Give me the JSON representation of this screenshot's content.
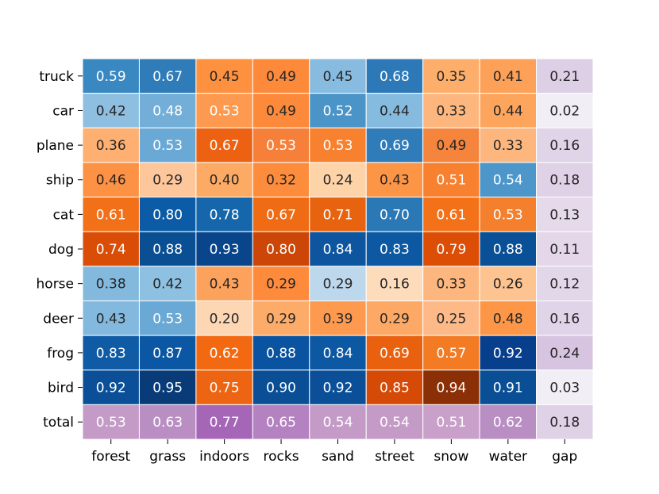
{
  "chart_data": {
    "type": "heatmap",
    "title": "",
    "xlabel": "",
    "ylabel": "",
    "columns": [
      "forest",
      "grass",
      "indoors",
      "rocks",
      "sand",
      "street",
      "snow",
      "water",
      "gap"
    ],
    "rows": [
      "truck",
      "car",
      "plane",
      "ship",
      "cat",
      "dog",
      "horse",
      "deer",
      "frog",
      "bird",
      "total"
    ],
    "values": [
      [
        0.59,
        0.67,
        0.45,
        0.49,
        0.45,
        0.68,
        0.35,
        0.41,
        0.21
      ],
      [
        0.42,
        0.48,
        0.53,
        0.49,
        0.52,
        0.44,
        0.33,
        0.44,
        0.02
      ],
      [
        0.36,
        0.53,
        0.67,
        0.53,
        0.53,
        0.69,
        0.49,
        0.33,
        0.16
      ],
      [
        0.46,
        0.29,
        0.4,
        0.32,
        0.24,
        0.43,
        0.51,
        0.54,
        0.18
      ],
      [
        0.61,
        0.8,
        0.78,
        0.67,
        0.71,
        0.7,
        0.61,
        0.53,
        0.13
      ],
      [
        0.74,
        0.88,
        0.93,
        0.8,
        0.84,
        0.83,
        0.79,
        0.88,
        0.11
      ],
      [
        0.38,
        0.42,
        0.43,
        0.29,
        0.29,
        0.16,
        0.33,
        0.26,
        0.12
      ],
      [
        0.43,
        0.53,
        0.2,
        0.29,
        0.39,
        0.29,
        0.25,
        0.48,
        0.16
      ],
      [
        0.83,
        0.87,
        0.62,
        0.88,
        0.84,
        0.69,
        0.57,
        0.92,
        0.24
      ],
      [
        0.92,
        0.95,
        0.75,
        0.9,
        0.92,
        0.85,
        0.94,
        0.91,
        0.03
      ],
      [
        0.53,
        0.63,
        0.77,
        0.65,
        0.54,
        0.54,
        0.51,
        0.62,
        0.18
      ]
    ],
    "cell_colors": [
      [
        "#3a88c2",
        "#2f7cb9",
        "#fd9140",
        "#fd8a3b",
        "#87bbe0",
        "#2d79b7",
        "#fdae6b",
        "#fda058",
        "#ddd0e6"
      ],
      [
        "#8ebfe0",
        "#72aed7",
        "#fd9a4f",
        "#fd8a3b",
        "#4a94c8",
        "#86bbe0",
        "#fdb77e",
        "#fda55d",
        "#f1eef5"
      ],
      [
        "#fdb072",
        "#6aa9d5",
        "#ec6212",
        "#f6803a",
        "#f7812f",
        "#2f7cb9",
        "#f5843d",
        "#fdb77e",
        "#e0d4e8"
      ],
      [
        "#fd9245",
        "#fdc69b",
        "#fdab64",
        "#fd8d3c",
        "#fed3a8",
        "#fd9546",
        "#f7812f",
        "#4c96ca",
        "#dfd2e7"
      ],
      [
        "#f17018",
        "#0b5ba6",
        "#1566ab",
        "#ef6b14",
        "#e7630f",
        "#2b78b6",
        "#f37219",
        "#f47f2c",
        "#e4daea"
      ],
      [
        "#da4d06",
        "#0a4f93",
        "#08458a",
        "#cc4607",
        "#0e55a0",
        "#0d58a3",
        "#dc4d05",
        "#0a5097",
        "#e3d7e9"
      ],
      [
        "#84b9de",
        "#8ec0e1",
        "#fda25c",
        "#fd8b3b",
        "#bdd7ec",
        "#fddcbc",
        "#fdb77e",
        "#fdc390",
        "#e2d6e9"
      ],
      [
        "#83b9de",
        "#6aa9d5",
        "#fdd6b3",
        "#fdab68",
        "#fd9a50",
        "#fda965",
        "#fdb987",
        "#fd9646",
        "#e0d4e8"
      ],
      [
        "#0f5ba6",
        "#0c57a3",
        "#f36912",
        "#0a53a0",
        "#0d58a3",
        "#e9610f",
        "#f37b24",
        "#083f8c",
        "#d6c4e0"
      ],
      [
        "#0a4f97",
        "#083b78",
        "#ed6512",
        "#0a4f96",
        "#0a4f97",
        "#d54a06",
        "#8b2f06",
        "#0a4f96",
        "#f2eef6"
      ],
      [
        "#c49ac7",
        "#b98ec3",
        "#a566b8",
        "#b482c0",
        "#c49ac7",
        "#c49ac7",
        "#c8a0ca",
        "#b98ec3",
        "#dfd2e7"
      ]
    ],
    "text_colors": [
      [
        "#ffffff",
        "#ffffff",
        "#262626",
        "#262626",
        "#262626",
        "#ffffff",
        "#262626",
        "#262626",
        "#262626"
      ],
      [
        "#262626",
        "#ffffff",
        "#ffffff",
        "#262626",
        "#ffffff",
        "#262626",
        "#262626",
        "#262626",
        "#262626"
      ],
      [
        "#262626",
        "#ffffff",
        "#ffffff",
        "#ffffff",
        "#ffffff",
        "#ffffff",
        "#262626",
        "#262626",
        "#262626"
      ],
      [
        "#262626",
        "#262626",
        "#262626",
        "#262626",
        "#262626",
        "#262626",
        "#ffffff",
        "#ffffff",
        "#262626"
      ],
      [
        "#ffffff",
        "#ffffff",
        "#ffffff",
        "#ffffff",
        "#ffffff",
        "#ffffff",
        "#ffffff",
        "#ffffff",
        "#262626"
      ],
      [
        "#ffffff",
        "#ffffff",
        "#ffffff",
        "#ffffff",
        "#ffffff",
        "#ffffff",
        "#ffffff",
        "#ffffff",
        "#262626"
      ],
      [
        "#262626",
        "#262626",
        "#262626",
        "#262626",
        "#262626",
        "#262626",
        "#262626",
        "#262626",
        "#262626"
      ],
      [
        "#262626",
        "#ffffff",
        "#262626",
        "#262626",
        "#262626",
        "#262626",
        "#262626",
        "#262626",
        "#262626"
      ],
      [
        "#ffffff",
        "#ffffff",
        "#ffffff",
        "#ffffff",
        "#ffffff",
        "#ffffff",
        "#ffffff",
        "#ffffff",
        "#262626"
      ],
      [
        "#ffffff",
        "#ffffff",
        "#ffffff",
        "#ffffff",
        "#ffffff",
        "#ffffff",
        "#ffffff",
        "#ffffff",
        "#262626"
      ],
      [
        "#ffffff",
        "#ffffff",
        "#ffffff",
        "#ffffff",
        "#ffffff",
        "#ffffff",
        "#ffffff",
        "#ffffff",
        "#262626"
      ]
    ],
    "grid_lines": "white",
    "colorbar": false
  }
}
